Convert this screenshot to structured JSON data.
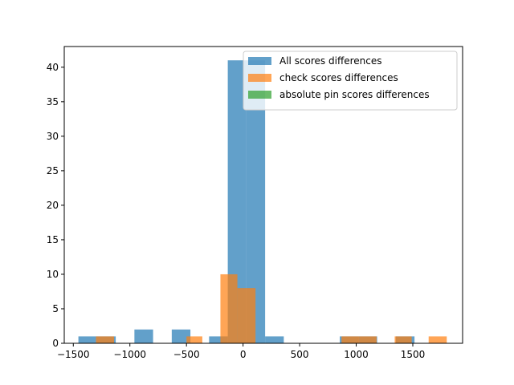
{
  "chart_data": {
    "type": "bar",
    "title": "",
    "xlabel": "",
    "ylabel": "",
    "xlim": [
      -1580,
      1940
    ],
    "ylim": [
      0,
      43
    ],
    "grid": false,
    "legend_placement": "top-right",
    "x_ticks": [
      -1500,
      -1000,
      -500,
      0,
      500,
      1000,
      1500
    ],
    "x_tick_labels": [
      "−1500",
      "−1000",
      "−500",
      "0",
      "500",
      "1000",
      "1500"
    ],
    "y_ticks": [
      0,
      5,
      10,
      15,
      20,
      25,
      30,
      35,
      40
    ],
    "y_tick_labels": [
      "0",
      "5",
      "10",
      "15",
      "20",
      "25",
      "30",
      "35",
      "40"
    ],
    "series": [
      {
        "name": "All scores differences",
        "color": "#1f77b4",
        "opacity": 0.7,
        "bins": [
          {
            "x0": -1455,
            "x1": -1290,
            "count": 1
          },
          {
            "x0": -1290,
            "x1": -1125,
            "count": 1
          },
          {
            "x0": -960,
            "x1": -795,
            "count": 2
          },
          {
            "x0": -630,
            "x1": -465,
            "count": 2
          },
          {
            "x0": -300,
            "x1": -135,
            "count": 1
          },
          {
            "x0": -135,
            "x1": 30,
            "count": 41
          },
          {
            "x0": 30,
            "x1": 195,
            "count": 41
          },
          {
            "x0": 195,
            "x1": 360,
            "count": 1
          },
          {
            "x0": 855,
            "x1": 1020,
            "count": 1
          },
          {
            "x0": 1020,
            "x1": 1185,
            "count": 1
          },
          {
            "x0": 1350,
            "x1": 1515,
            "count": 1
          }
        ]
      },
      {
        "name": "check scores differences",
        "color": "#ff7f0e",
        "opacity": 0.7,
        "bins": [
          {
            "x0": -1300,
            "x1": -1140,
            "count": 1
          },
          {
            "x0": -500,
            "x1": -360,
            "count": 1
          },
          {
            "x0": -200,
            "x1": -50,
            "count": 10
          },
          {
            "x0": -50,
            "x1": 110,
            "count": 8
          },
          {
            "x0": 870,
            "x1": 1030,
            "count": 1
          },
          {
            "x0": 1030,
            "x1": 1180,
            "count": 1
          },
          {
            "x0": 1340,
            "x1": 1490,
            "count": 1
          },
          {
            "x0": 1640,
            "x1": 1800,
            "count": 1
          }
        ]
      },
      {
        "name": "absolute pin scores differences",
        "color": "#2ca02c",
        "opacity": 0.7,
        "bins": []
      }
    ]
  }
}
